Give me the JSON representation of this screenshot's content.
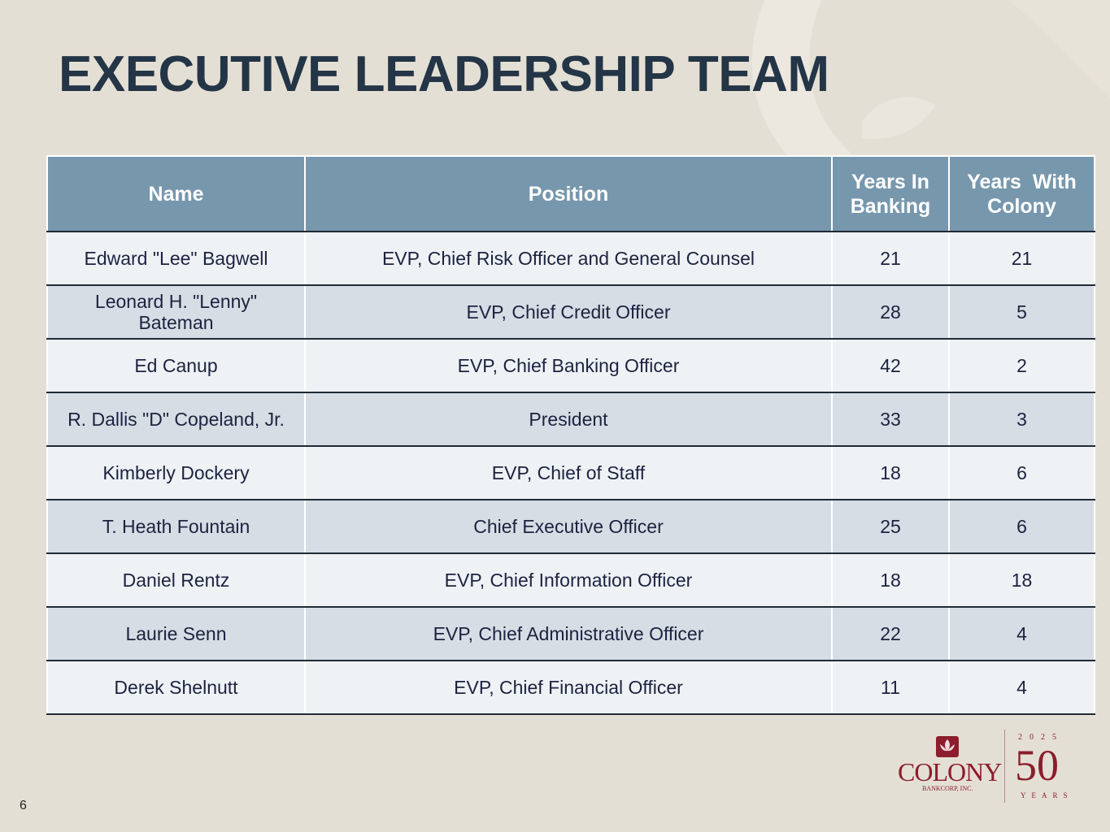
{
  "title": "EXECUTIVE LEADERSHIP TEAM",
  "table": {
    "headers": {
      "name": "Name",
      "position": "Position",
      "years_banking_line1": "Years In",
      "years_banking_line2": "Banking",
      "years_colony_line1": "Years  With",
      "years_colony_line2": "Colony"
    },
    "rows": [
      {
        "name": "Edward \"Lee\" Bagwell",
        "position": "EVP, Chief Risk Officer and General Counsel",
        "years_banking": "21",
        "years_colony": "21"
      },
      {
        "name": "Leonard H. \"Lenny\" Bateman",
        "position": "EVP, Chief Credit Officer",
        "years_banking": "28",
        "years_colony": "5"
      },
      {
        "name": "Ed Canup",
        "position": "EVP, Chief Banking Officer",
        "years_banking": "42",
        "years_colony": "2"
      },
      {
        "name": "R. Dallis \"D\" Copeland, Jr.",
        "position": "President",
        "years_banking": "33",
        "years_colony": "3"
      },
      {
        "name": "Kimberly Dockery",
        "position": "EVP, Chief of Staff",
        "years_banking": "18",
        "years_colony": "6"
      },
      {
        "name": "T. Heath Fountain",
        "position": "Chief Executive Officer",
        "years_banking": "25",
        "years_colony": "6"
      },
      {
        "name": "Daniel Rentz",
        "position": "EVP, Chief Information Officer",
        "years_banking": "18",
        "years_colony": "18"
      },
      {
        "name": "Laurie Senn",
        "position": "EVP, Chief Administrative Officer",
        "years_banking": "22",
        "years_colony": "4"
      },
      {
        "name": "Derek Shelnutt",
        "position": "EVP, Chief Financial Officer",
        "years_banking": "11",
        "years_colony": "4"
      }
    ]
  },
  "page_number": "6",
  "logo": {
    "name": "COLONY",
    "subtitle": "BANKCORP, INC.",
    "anniversary_year": "2025",
    "anniversary_number": "50",
    "anniversary_label": "YEARS",
    "emblem_icon": "lotus-icon"
  },
  "colors": {
    "background": "#e4dfd4",
    "title": "#233546",
    "header_bg": "#7797ad",
    "row_light": "#eff2f5",
    "row_dark": "#d6dde4",
    "brand": "#8c1d2c"
  }
}
